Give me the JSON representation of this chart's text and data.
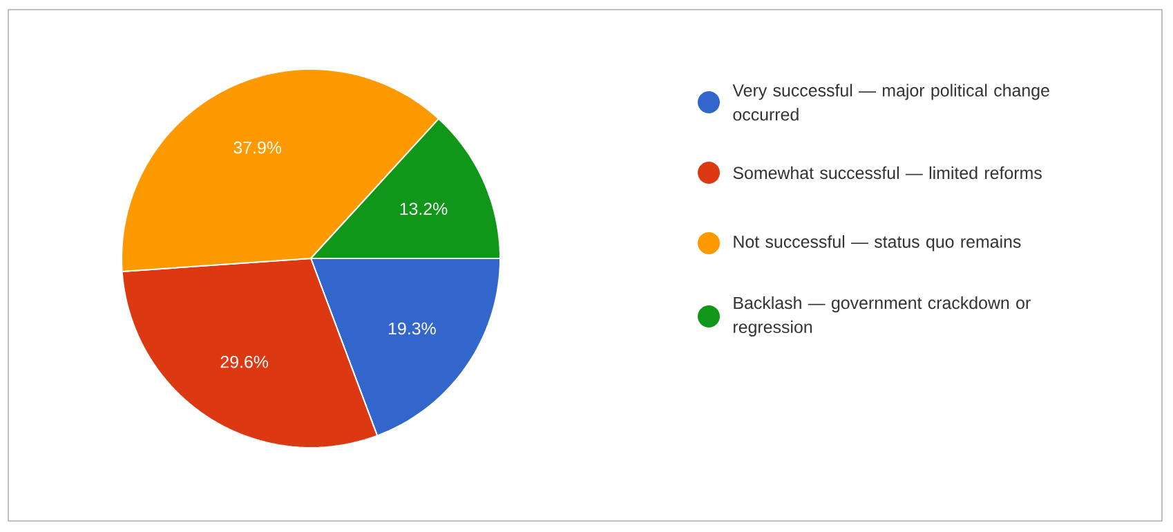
{
  "chart_data": {
    "type": "pie",
    "categories": [
      "Very successful — major political change occurred",
      "Somewhat successful — limited reforms",
      "Not successful — status quo remains",
      "Backlash — government crackdown or regression"
    ],
    "values": [
      19.3,
      29.6,
      37.9,
      13.2
    ],
    "colors": [
      "#3366cc",
      "#dc3912",
      "#ff9900",
      "#109618"
    ],
    "data_labels": true,
    "value_labels": [
      "19.3%",
      "29.6%",
      "37.9%",
      "13.2%"
    ],
    "legend": "right"
  }
}
